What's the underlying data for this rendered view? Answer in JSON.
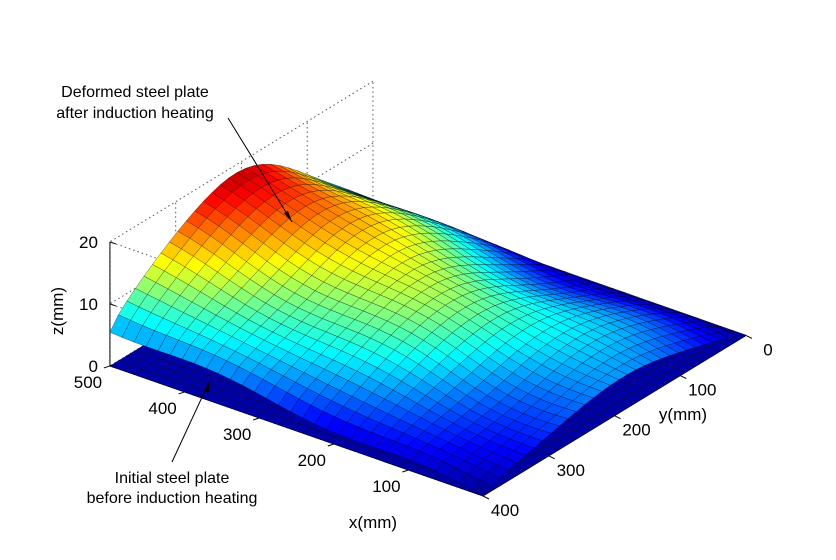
{
  "chart_data": {
    "type": "surface",
    "title": "",
    "xlabel": "x(mm)",
    "ylabel": "y(mm)",
    "zlabel": "z(mm)",
    "x_range": [
      0,
      500
    ],
    "y_range": [
      0,
      400
    ],
    "z_range": [
      0,
      20
    ],
    "x_ticks": [
      "100",
      "200",
      "300",
      "400",
      "500"
    ],
    "y_ticks": [
      "0",
      "100",
      "200",
      "300",
      "400"
    ],
    "z_ticks": [
      "0",
      "10",
      "20"
    ],
    "grid": true,
    "colormap": "jet",
    "surfaces": [
      {
        "name": "Initial steel plate",
        "z_constant": 0
      },
      {
        "name": "Deformed steel plate",
        "z_min": 0,
        "z_max": 20
      }
    ],
    "annotations": [
      {
        "id": "deformed",
        "lines": [
          "Deformed steel plate",
          "after induction heating"
        ]
      },
      {
        "id": "initial",
        "lines": [
          "Initial steel plate",
          "before induction heating"
        ]
      }
    ]
  },
  "colors": {
    "grid": "#555555",
    "mesh": "#000000",
    "flat_plate": "#0000a8"
  }
}
